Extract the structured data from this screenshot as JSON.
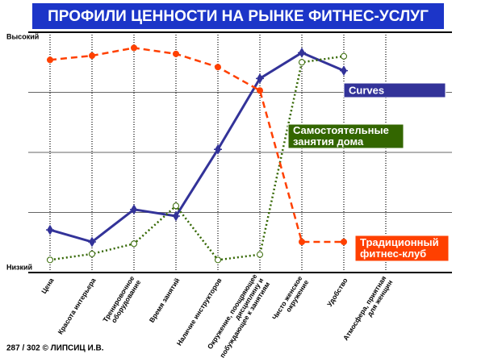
{
  "chart_data": {
    "type": "line",
    "title": "ПРОФИЛИ ЦЕННОСТИ НА РЫНКЕ ФИТНЕС-УСЛУГ",
    "footer": "287 / 302 © ЛИПСИЦ И.В.",
    "categories": [
      "Цена",
      "Красота интерьера",
      "Тренировочное\nоборудование",
      "Время занятий",
      "Наличие инструкторов",
      "Окружение, поощряющее\nдисциплину и\nпобуждающее к занятиям",
      "Чисто женское\nокружение",
      "Удобство",
      "Атмосфера, приятная\nдля женщин"
    ],
    "ylim": [
      0,
      4
    ],
    "yticks": [
      {
        "value": 4,
        "label": "Высокий"
      },
      {
        "value": 0,
        "label": "Низкий"
      }
    ],
    "grid_values": [
      1,
      2,
      3
    ],
    "series": [
      {
        "name": "Curves",
        "color": "#333399",
        "style": "solid",
        "marker": "star",
        "values": [
          0.71,
          0.51,
          1.05,
          0.94,
          2.05,
          3.23,
          3.66,
          3.36,
          null
        ]
      },
      {
        "name": "Самостоятельные\nзанятия дома",
        "color": "#336600",
        "style": "dotted",
        "marker": "open-circle",
        "values": [
          0.21,
          0.31,
          0.48,
          1.11,
          0.21,
          0.3,
          3.5,
          3.6,
          null
        ]
      },
      {
        "name": "Традиционный\nфитнес-клуб",
        "color": "#ff4000",
        "style": "dashed",
        "marker": "circle",
        "values": [
          3.54,
          3.61,
          3.74,
          3.64,
          3.42,
          3.03,
          0.51,
          0.51,
          null
        ]
      }
    ]
  }
}
